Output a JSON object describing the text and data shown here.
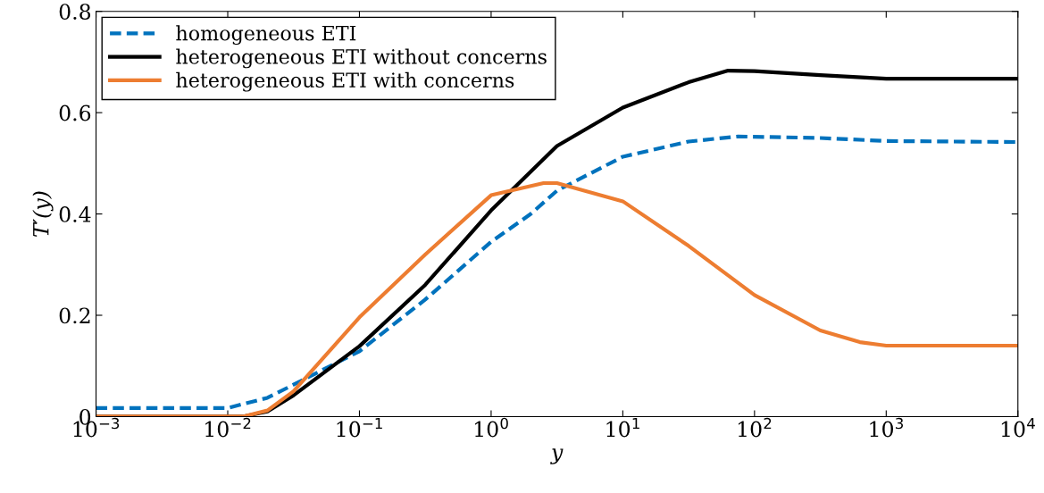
{
  "chart_data": {
    "type": "line",
    "xlabel": "y",
    "ylabel": "T′(y)",
    "log": "x",
    "xlim": [
      0.001,
      10000
    ],
    "xticks": [
      {
        "value": 0.001,
        "label": "10$^{−3}$"
      },
      {
        "value": 0.01,
        "label": "10$^{−2}$"
      },
      {
        "value": 0.1,
        "label": "10$^{−1}$"
      },
      {
        "value": 1,
        "label": "10$^{0}$"
      },
      {
        "value": 10,
        "label": "10$^{1}$"
      },
      {
        "value": 100,
        "label": "10$^{2}$"
      },
      {
        "value": 1000,
        "label": "10$^{3}$"
      },
      {
        "value": 10000,
        "label": "10$^{4}$"
      }
    ],
    "ylim": [
      0,
      0.8
    ],
    "yticks": [
      {
        "value": 0,
        "label": "0"
      },
      0.2,
      0.4,
      0.6,
      0.8
    ],
    "grid": false,
    "legend": "top left",
    "marker": "none",
    "series": [
      {
        "name": "homogeneous ETI",
        "color": "#0072bd",
        "line_style": "dashed",
        "x": [
          0.001,
          0.01,
          0.02,
          0.0316,
          0.1,
          0.316,
          1,
          2,
          3.16,
          10,
          31.6,
          75,
          316,
          1000,
          10000
        ],
        "values": [
          0.017,
          0.017,
          0.037,
          0.063,
          0.129,
          0.231,
          0.345,
          0.4,
          0.446,
          0.513,
          0.543,
          0.553,
          0.55,
          0.544,
          0.542
        ]
      },
      {
        "name": "heterogeneous ETI without concerns",
        "color": "#000000",
        "line_style": "solid",
        "x": [
          0.001,
          0.013,
          0.02,
          0.0316,
          0.1,
          0.316,
          1,
          3.16,
          10,
          31.6,
          63,
          100,
          316,
          1000,
          10000
        ],
        "values": [
          0,
          0,
          0.01,
          0.042,
          0.139,
          0.26,
          0.407,
          0.534,
          0.61,
          0.66,
          0.683,
          0.682,
          0.674,
          0.667,
          0.667
        ]
      },
      {
        "name": "heterogeneous ETI with concerns",
        "color": "#ed7d31",
        "line_style": "solid",
        "x": [
          0.001,
          0.013,
          0.02,
          0.0316,
          0.1,
          0.316,
          1,
          2.5,
          3.16,
          10,
          31.6,
          100,
          316,
          631,
          1000,
          10000
        ],
        "values": [
          0,
          0,
          0.012,
          0.05,
          0.196,
          0.32,
          0.437,
          0.461,
          0.461,
          0.425,
          0.337,
          0.24,
          0.17,
          0.147,
          0.14,
          0.14
        ]
      }
    ]
  }
}
